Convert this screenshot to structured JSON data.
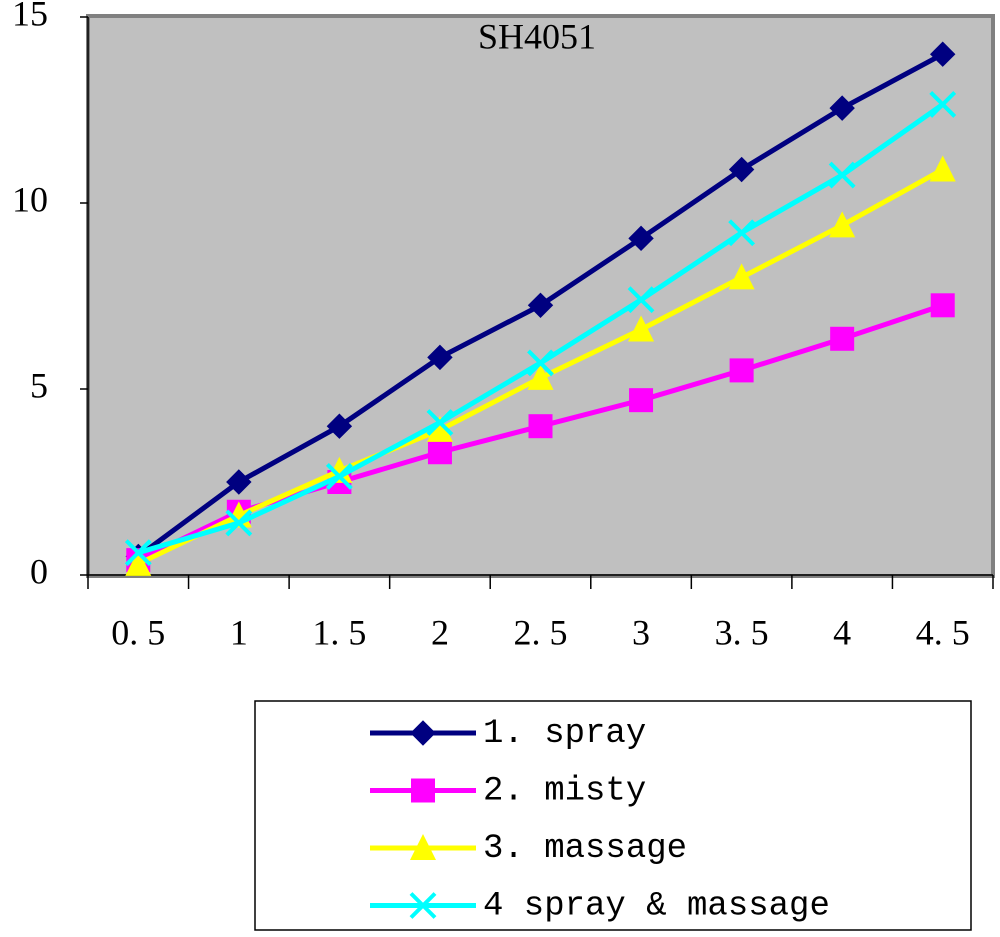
{
  "chart_data": {
    "type": "line",
    "title": "SH4051",
    "categories": [
      "0. 5",
      "1",
      "1. 5",
      "2",
      "2. 5",
      "3",
      "3. 5",
      "4",
      "4. 5"
    ],
    "ylim": [
      0,
      15
    ],
    "yticks": [
      0,
      5,
      10,
      15
    ],
    "series": [
      {
        "name": "1. spray",
        "color": "#000080",
        "marker": "diamond",
        "values": [
          0.5,
          2.5,
          4,
          5.85,
          7.25,
          9.05,
          10.9,
          12.55,
          14
        ]
      },
      {
        "name": "2. misty",
        "color": "#ff00ff",
        "marker": "square",
        "values": [
          0.4,
          1.7,
          2.5,
          3.3,
          4,
          4.7,
          5.5,
          6.35,
          7.25
        ]
      },
      {
        "name": "3. massage",
        "color": "#ffff00",
        "marker": "triangle",
        "values": [
          0.3,
          1.6,
          2.8,
          3.9,
          5.3,
          6.6,
          8,
          9.4,
          10.9
        ]
      },
      {
        "name": "4 spray & massage",
        "color": "#00ffff",
        "marker": "x",
        "values": [
          0.6,
          1.4,
          2.65,
          4.1,
          5.7,
          7.4,
          9.2,
          10.75,
          12.65
        ]
      }
    ]
  }
}
